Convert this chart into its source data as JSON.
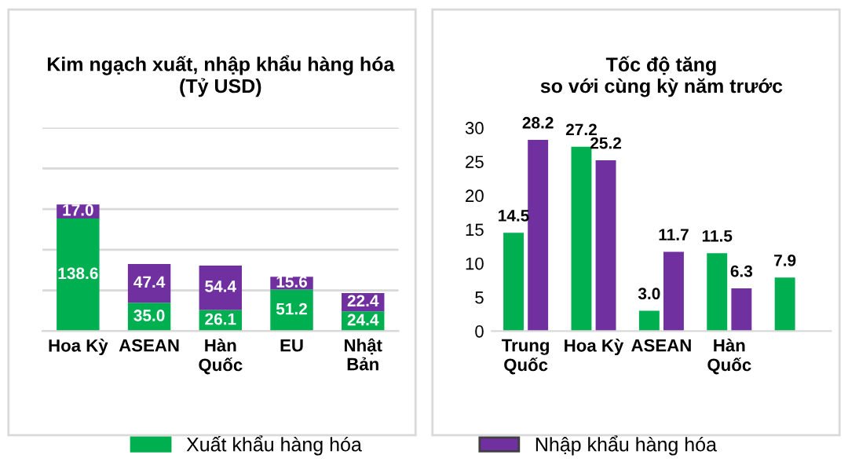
{
  "chart_data": [
    {
      "type": "bar",
      "title": "Kim ngạch xuất, nhập khẩu hàng hóa\n(Tỷ USD)",
      "stacked": true,
      "categories": [
        "Hoa Kỳ",
        "ASEAN",
        "Hàn\nQuốc",
        "EU",
        "Nhật\nBản"
      ],
      "series": [
        {
          "name": "Xuất khẩu hàng hóa",
          "color": "#00b050",
          "values": [
            138.6,
            35.0,
            26.1,
            51.2,
            24.4
          ],
          "value_labels": [
            "138.6",
            "35.0",
            "26.1",
            "51.2",
            "24.4"
          ]
        },
        {
          "name": "Nhập khẩu hàng hóa",
          "color": "#7030a0",
          "values": [
            17.0,
            47.4,
            54.4,
            15.6,
            22.4
          ],
          "value_labels": [
            "17.0",
            "47.4",
            "54.4",
            "15.6",
            "22.4"
          ]
        }
      ],
      "ylim": [
        0,
        250
      ],
      "yticks": [
        {
          "value": 0,
          "label": null
        },
        {
          "value": 50,
          "label": null
        },
        {
          "value": 100,
          "label": null
        },
        {
          "value": 150,
          "label": null
        },
        {
          "value": 200,
          "label": null
        },
        {
          "value": 250,
          "label": null
        }
      ],
      "grid": "y",
      "tick_labels": "x",
      "legend": "bottom"
    },
    {
      "type": "bar",
      "title": "Tốc độ tăng\nso với cùng kỳ năm trước",
      "categories": [
        "Trung\nQuốc",
        "Hoa Kỳ",
        "ASEAN",
        "Hàn\nQuốc",
        null
      ],
      "series": [
        {
          "color": "#00b050",
          "values": [
            14.5,
            27.2,
            3.0,
            11.5,
            7.9
          ],
          "value_labels": [
            "14.5",
            "27.2",
            "3.0",
            "11.5",
            "7.9"
          ]
        },
        {
          "color": "#7030a0",
          "values": [
            28.2,
            25.2,
            11.7,
            6.3,
            null
          ],
          "value_labels": [
            "28.2",
            "25.2",
            "11.7",
            "6.3",
            null
          ]
        }
      ],
      "ylim": [
        0,
        30
      ],
      "yticks": [
        0,
        5,
        10,
        15,
        20,
        25,
        30
      ],
      "grid": false
    }
  ]
}
